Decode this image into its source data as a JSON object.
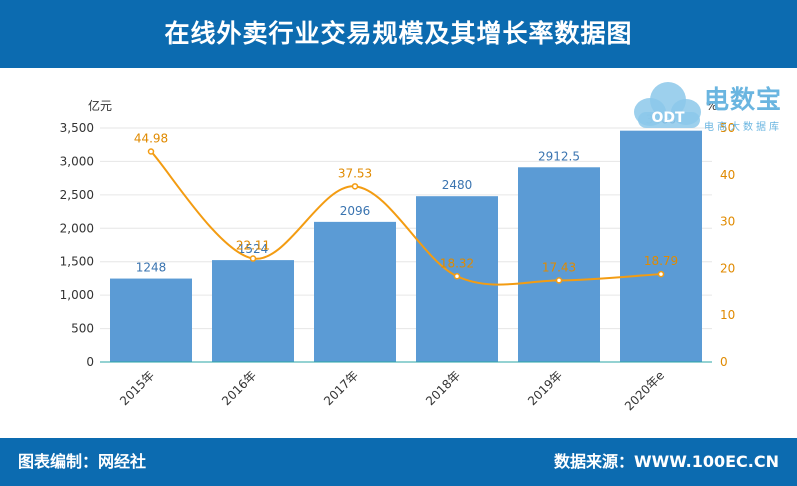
{
  "header": {
    "title": "在线外卖行业交易规模及其增长率数据图"
  },
  "footer": {
    "left": "图表编制：网经社",
    "right": "数据来源：WWW.100EC.CN"
  },
  "logo": {
    "brand": "电数宝",
    "sub": "电商大数据库",
    "badge": "ODT"
  },
  "colors": {
    "header_bg": "#0c6bb0",
    "bar": "#5b9bd5",
    "line": "#f39c12",
    "axis_right": "#e08a00"
  },
  "chart_data": {
    "type": "bar",
    "categories": [
      "2015年",
      "2016年",
      "2017年",
      "2018年",
      "2019年",
      "2020年e"
    ],
    "series": [
      {
        "values": [
          1248,
          1524,
          2096,
          2480,
          2912.5,
          3460
        ],
        "axis": "left",
        "kind": "bar"
      },
      {
        "values": [
          44.98,
          22.11,
          37.53,
          18.32,
          17.43,
          18.79
        ],
        "axis": "right",
        "kind": "line"
      }
    ],
    "value_labels": [
      "1248",
      "1524",
      "2096",
      "2480",
      "2912.5",
      "3460"
    ],
    "rate_labels": [
      "44.98",
      "22.11",
      "37.53",
      "18.32",
      "17.43",
      "18.79"
    ],
    "ylabel": "亿元",
    "y2label": "%",
    "ylim": [
      0,
      3500
    ],
    "y2lim": [
      0,
      50
    ],
    "yticks": [
      "0",
      "500",
      "1,000",
      "1,500",
      "2,000",
      "2,500",
      "3,000",
      "3,500"
    ],
    "y2ticks": [
      "0",
      "10",
      "20",
      "30",
      "40",
      "50"
    ],
    "grid": true,
    "legend": "none"
  }
}
